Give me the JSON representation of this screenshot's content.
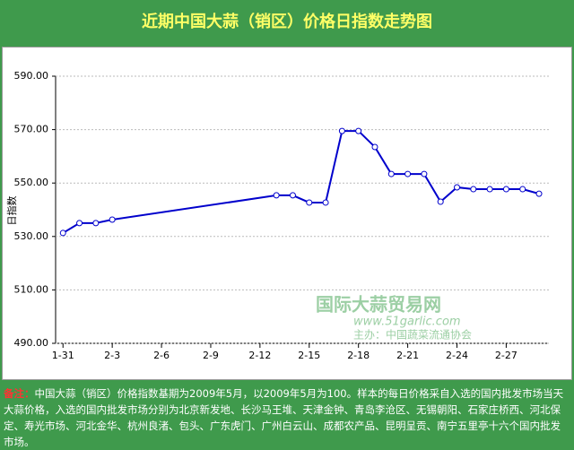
{
  "title": "近期中国大蒜（销区）价格日指数走势图",
  "chart_data": {
    "type": "line",
    "y_label": "日指数",
    "x": [
      0,
      1,
      2,
      3,
      13,
      14,
      15,
      16,
      17,
      18,
      19,
      20,
      21,
      22,
      23,
      24,
      25,
      26,
      27,
      28,
      29
    ],
    "series": [
      {
        "name": "日指数",
        "color": "#0000cc",
        "values": [
          531.3,
          535.0,
          535.0,
          536.3,
          545.4,
          545.4,
          542.7,
          542.7,
          569.5,
          569.5,
          563.5,
          553.4,
          553.4,
          553.4,
          543.0,
          548.4,
          547.7,
          547.7,
          547.7,
          547.7,
          546.0
        ]
      }
    ],
    "xlim": [
      -0.45,
      29.6
    ],
    "xticks": [
      {
        "value": 0,
        "label": "1-31"
      },
      {
        "value": 3,
        "label": "2-3"
      },
      {
        "value": 6,
        "label": "2-6"
      },
      {
        "value": 9,
        "label": "2-9"
      },
      {
        "value": 12,
        "label": "2-12"
      },
      {
        "value": 15,
        "label": "2-15"
      },
      {
        "value": 18,
        "label": "2-18"
      },
      {
        "value": 21,
        "label": "2-21"
      },
      {
        "value": 24,
        "label": "2-24"
      },
      {
        "value": 27,
        "label": "2-27"
      }
    ],
    "ylim": [
      490,
      590
    ],
    "yticks": [
      {
        "value": 490,
        "label": "490.00"
      },
      {
        "value": 510,
        "label": "510.00"
      },
      {
        "value": 530,
        "label": "530.00"
      },
      {
        "value": 550,
        "label": "550.00"
      },
      {
        "value": 570,
        "label": "570.00"
      },
      {
        "value": 590,
        "label": "590.00"
      }
    ],
    "grid": true
  },
  "watermark": {
    "name": "国际大蒜贸易网",
    "url": "www.51garlic.com",
    "host": "主办：中国蔬菜流通协会"
  },
  "note": {
    "label": "备注：",
    "text": "中国大蒜（销区）价格指数基期为2009年5月，以2009年5月为100。样本的每日价格采自入选的国内批发市场当天大蒜价格，入选的国内批发市场分别为北京新发地、长沙马王堆、天津金钟、青岛李沧区、无锡朝阳、石家庄桥西、河北保定、寿光市场、河北金华、杭州良渚、包头、广东虎门、广州白云山、成都农产品、昆明呈贡、南宁五里亭十六个国内批发市场。"
  }
}
